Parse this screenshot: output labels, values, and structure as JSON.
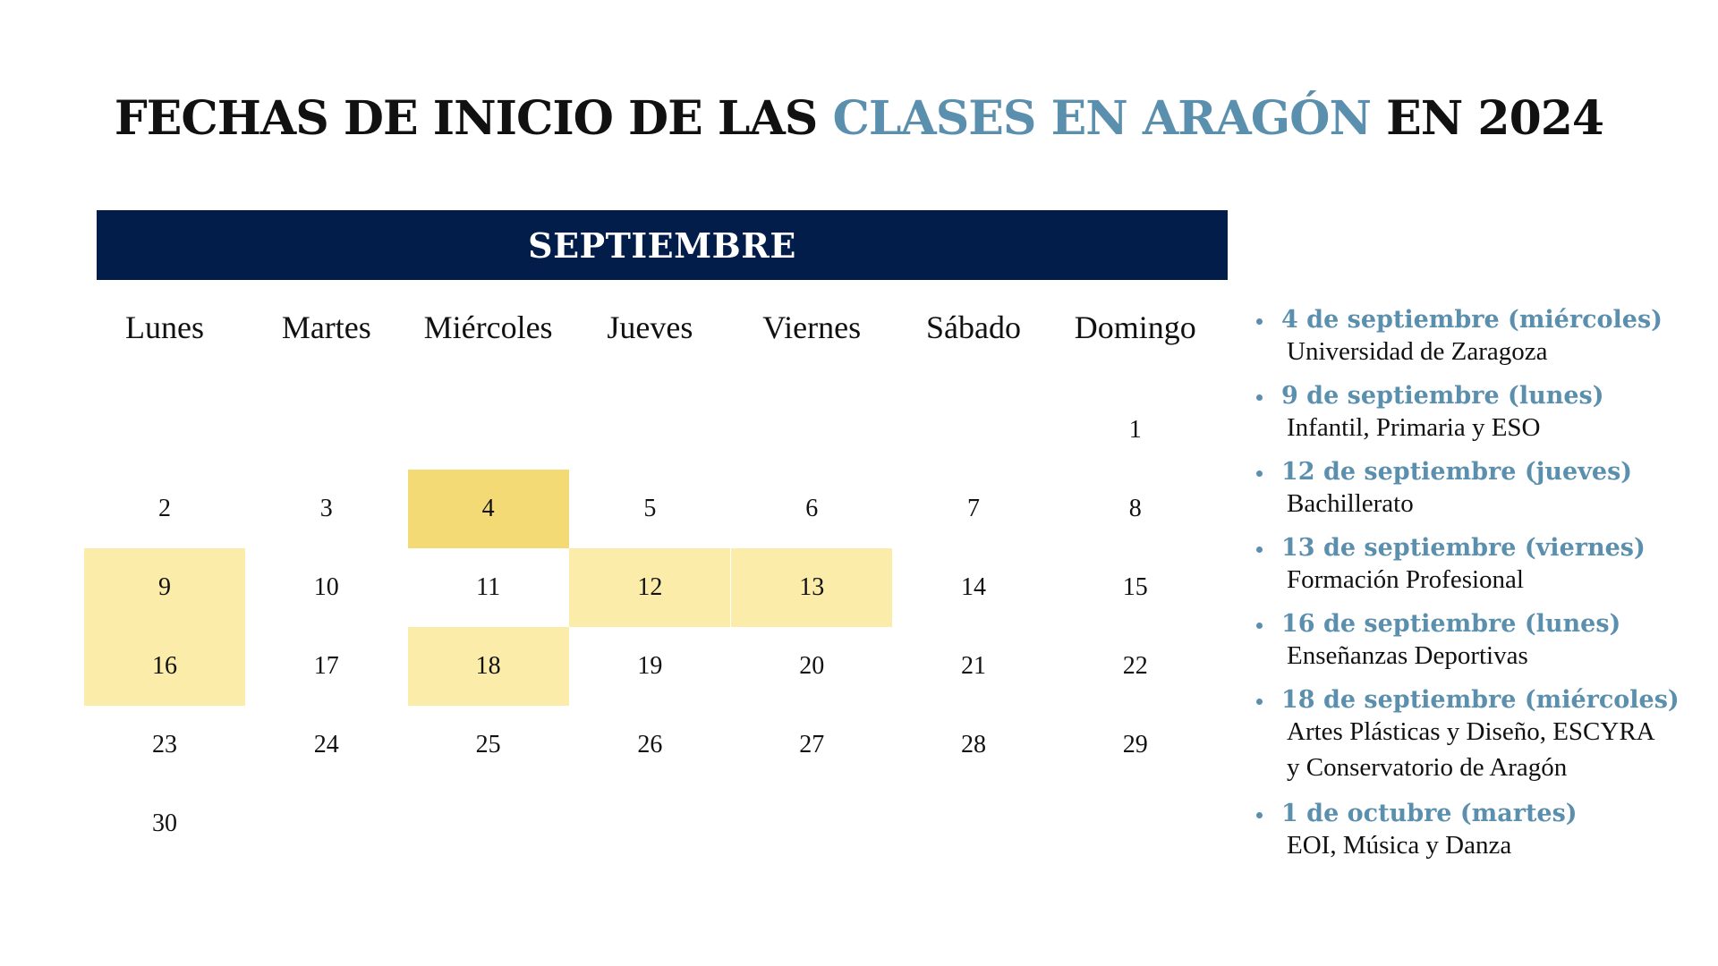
{
  "title": {
    "part1": "FECHAS DE INICIO DE LAS ",
    "accent": "CLASES EN  ARAGÓN",
    "part2": " EN 2024"
  },
  "calendar": {
    "month": "SEPTIEMBRE",
    "weekdays": [
      "Lunes",
      "Martes",
      "Miércoles",
      "Jueves",
      "Viernes",
      "Sábado",
      "Domingo"
    ],
    "weeks": [
      [
        "",
        "",
        "",
        "",
        "",
        "",
        "1"
      ],
      [
        "2",
        "3",
        "4",
        "5",
        "6",
        "7",
        "8"
      ],
      [
        "9",
        "10",
        "11",
        "12",
        "13",
        "14",
        "15"
      ],
      [
        "16",
        "17",
        "18",
        "19",
        "20",
        "21",
        "22"
      ],
      [
        "23",
        "24",
        "25",
        "26",
        "27",
        "28",
        "29"
      ],
      [
        "30",
        "",
        "",
        "",
        "",
        "",
        ""
      ]
    ],
    "highlight_strong": [
      "4"
    ],
    "highlight_light": [
      "9",
      "12",
      "13",
      "16",
      "18"
    ],
    "colors": {
      "banner": "#031d4a",
      "strong": "#f3da74",
      "light": "#fbeca9",
      "accent": "#5b8fae"
    }
  },
  "events": [
    {
      "date": "4 de septiembre (miércoles)",
      "lines": [
        "Universidad de Zaragoza"
      ]
    },
    {
      "date": "9 de septiembre (lunes)",
      "lines": [
        "Infantil, Primaria y ESO"
      ]
    },
    {
      "date": "12 de septiembre (jueves)",
      "lines": [
        "Bachillerato"
      ]
    },
    {
      "date": "13 de septiembre (viernes)",
      "lines": [
        "Formación Profesional"
      ]
    },
    {
      "date": "16 de septiembre (lunes)",
      "lines": [
        "Enseñanzas Deportivas"
      ]
    },
    {
      "date": "18 de septiembre (miércoles)",
      "lines": [
        "Artes Plásticas y Diseño, ESCYRA",
        "y Conservatorio de Aragón"
      ]
    },
    {
      "date": "1 de octubre (martes)",
      "lines": [
        "EOI, Música y Danza"
      ]
    }
  ]
}
